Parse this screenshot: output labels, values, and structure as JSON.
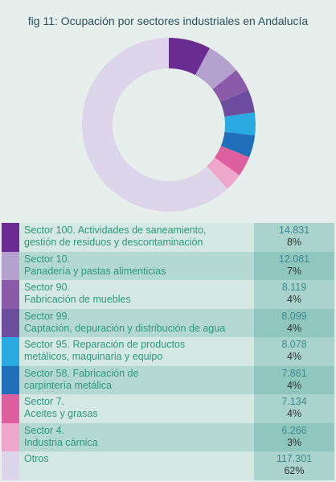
{
  "chart_data": {
    "type": "pie",
    "donut": true,
    "title": "fig 11: Ocupación por sectores industriales en Andalucía",
    "categories": [
      "Sector 100. Actividades de saneamiento,\ngestión de residuos y descontaminación",
      "Sector 10.\nPanadería y pastas alimenticias",
      "Sector 90.\nFabricación de muebles",
      "Sector 99.\nCaptación, depuración y distribución de agua",
      "Sector 95. Reparación de productos\nmetálicos, maquinaria y equipo",
      "Sector 58. Fabricación de\ncarpintería metálica",
      "Sector 7.\nAceites y grasas",
      "Sector 4.\nIndustria cárnica",
      "Otros"
    ],
    "values": [
      14831,
      12081,
      8119,
      8099,
      8078,
      7861,
      7134,
      6266,
      117301
    ],
    "value_labels": [
      "14.831",
      "12.081",
      "8.119",
      "8.099",
      "8.078",
      "7.861",
      "7.134",
      "6.266",
      "117.301"
    ],
    "percentages": [
      8,
      7,
      4,
      4,
      4,
      4,
      4,
      3,
      62
    ],
    "percentage_labels": [
      "8%",
      "7%",
      "4%",
      "4%",
      "4%",
      "4%",
      "4%",
      "3%",
      "62%"
    ],
    "colors": [
      "#6a2c91",
      "#b4a1cd",
      "#8b5aa9",
      "#6b4c9d",
      "#29abe2",
      "#1f6fba",
      "#de5fa0",
      "#eea6cb",
      "#ddd5ea"
    ]
  }
}
